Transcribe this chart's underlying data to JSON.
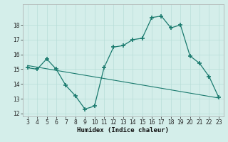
{
  "x": [
    3,
    4,
    5,
    6,
    7,
    8,
    9,
    10,
    11,
    12,
    13,
    14,
    15,
    16,
    17,
    18,
    19,
    20,
    21,
    22,
    23
  ],
  "y": [
    15.1,
    15.0,
    15.7,
    15.0,
    13.9,
    13.2,
    12.3,
    12.5,
    15.1,
    16.5,
    16.6,
    17.0,
    17.1,
    18.5,
    18.6,
    17.8,
    18.0,
    15.9,
    15.4,
    14.5,
    13.1
  ],
  "trend_x": [
    3,
    23
  ],
  "trend_y": [
    15.25,
    13.05
  ],
  "line_color": "#1a7a6e",
  "bg_color": "#d4eeea",
  "grid_color": "#b8ddd8",
  "xlabel": "Humidex (Indice chaleur)",
  "ylim": [
    11.8,
    19.4
  ],
  "xlim": [
    2.5,
    23.5
  ],
  "yticks": [
    12,
    13,
    14,
    15,
    16,
    17,
    18
  ],
  "xticks": [
    3,
    4,
    5,
    6,
    7,
    8,
    9,
    10,
    11,
    12,
    13,
    14,
    15,
    16,
    17,
    18,
    19,
    20,
    21,
    22,
    23
  ]
}
